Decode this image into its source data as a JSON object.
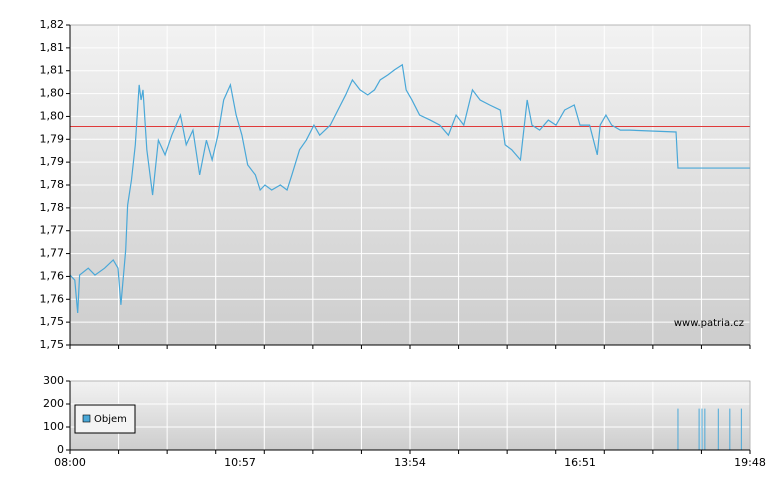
{
  "chart_data": [
    {
      "type": "line",
      "color": "#4aa8d8",
      "x": [
        "08:00",
        "08:05",
        "08:08",
        "08:10",
        "08:19",
        "08:26",
        "08:36",
        "08:45",
        "08:50",
        "08:53",
        "08:58",
        "09:00",
        "09:04",
        "09:08",
        "09:12",
        "09:14",
        "09:16",
        "09:20",
        "09:26",
        "09:32",
        "09:39",
        "09:46",
        "09:55",
        "10:01",
        "10:08",
        "10:15",
        "10:22",
        "10:28",
        "10:34",
        "10:40",
        "10:47",
        "10:53",
        "10:59",
        "11:05",
        "11:13",
        "11:18",
        "11:23",
        "11:30",
        "11:39",
        "11:46",
        "11:51",
        "11:59",
        "12:06",
        "12:14",
        "12:20",
        "12:31",
        "12:39",
        "12:47",
        "12:54",
        "13:02",
        "13:10",
        "13:17",
        "13:23",
        "13:31",
        "13:38",
        "13:46",
        "13:50",
        "13:56",
        "14:04",
        "14:15",
        "14:25",
        "14:34",
        "14:42",
        "14:50",
        "14:59",
        "15:07",
        "15:17",
        "15:28",
        "15:33",
        "15:40",
        "15:49",
        "15:56",
        "16:01",
        "16:09",
        "16:18",
        "16:26",
        "16:35",
        "16:45",
        "16:51",
        "17:01",
        "17:09",
        "17:12",
        "17:18",
        "17:24",
        "17:33",
        "17:43",
        "18:31",
        "18:33",
        "19:48"
      ],
      "values": [
        1.7653,
        1.7642,
        1.757,
        1.7653,
        1.7668,
        1.7653,
        1.7668,
        1.7686,
        1.7668,
        1.7588,
        1.7708,
        1.7806,
        1.7861,
        1.7938,
        1.8069,
        1.8036,
        1.8058,
        1.7927,
        1.7828,
        1.7948,
        1.7916,
        1.7959,
        1.8003,
        1.7938,
        1.797,
        1.7872,
        1.7948,
        1.7905,
        1.7959,
        1.8036,
        1.8069,
        1.8003,
        1.7959,
        1.7894,
        1.7872,
        1.7839,
        1.785,
        1.7839,
        1.785,
        1.7839,
        1.7872,
        1.7927,
        1.7948,
        1.7981,
        1.7959,
        1.7981,
        1.8014,
        1.8047,
        1.808,
        1.8058,
        1.8047,
        1.8058,
        1.808,
        1.8091,
        1.8102,
        1.8113,
        1.8058,
        1.8036,
        1.8003,
        1.7992,
        1.7981,
        1.7959,
        1.8003,
        1.7981,
        1.8058,
        1.8036,
        1.8025,
        1.8014,
        1.7938,
        1.7927,
        1.7905,
        1.8036,
        1.7981,
        1.797,
        1.7992,
        1.7981,
        1.8014,
        1.8025,
        1.7981,
        1.7981,
        1.7916,
        1.7981,
        1.8003,
        1.7981,
        1.797,
        1.797,
        1.7966,
        1.7887,
        1.7887
      ],
      "reference_line": {
        "value": 1.7978,
        "color": "#e03a3a"
      },
      "xlim": [
        "08:00",
        "19:48"
      ],
      "ylim": [
        1.75,
        1.82
      ],
      "yticks": [
        {
          "value": 1.75,
          "label": "1,75"
        },
        {
          "value": 1.755,
          "label": "1,75"
        },
        {
          "value": 1.76,
          "label": "1,76"
        },
        {
          "value": 1.765,
          "label": "1,76"
        },
        {
          "value": 1.77,
          "label": "1,77"
        },
        {
          "value": 1.775,
          "label": "1,77"
        },
        {
          "value": 1.78,
          "label": "1,78"
        },
        {
          "value": 1.785,
          "label": "1,78"
        },
        {
          "value": 1.79,
          "label": "1,79"
        },
        {
          "value": 1.795,
          "label": "1,79"
        },
        {
          "value": 1.8,
          "label": "1,80"
        },
        {
          "value": 1.805,
          "label": "1,80"
        },
        {
          "value": 1.81,
          "label": "1,81"
        },
        {
          "value": 1.815,
          "label": "1,81"
        },
        {
          "value": 1.82,
          "label": "1,82"
        }
      ],
      "annotation": "www.patria.cz",
      "grid": true
    },
    {
      "type": "bar",
      "x": [
        "18:33",
        "18:55",
        "18:58",
        "19:01",
        "19:15",
        "19:27",
        "19:39"
      ],
      "series": [
        {
          "name": "Objem",
          "color": "#4aa8d8",
          "values": [
            180,
            180,
            180,
            180,
            180,
            180,
            180
          ]
        }
      ],
      "xlim": [
        "08:00",
        "19:48"
      ],
      "xticks": [
        "08:00",
        "10:57",
        "13:54",
        "16:51",
        "19:48"
      ],
      "ylim": [
        0,
        300
      ],
      "yticks": [
        0,
        100,
        200,
        300
      ],
      "grid": true,
      "legend": "upper left"
    }
  ]
}
